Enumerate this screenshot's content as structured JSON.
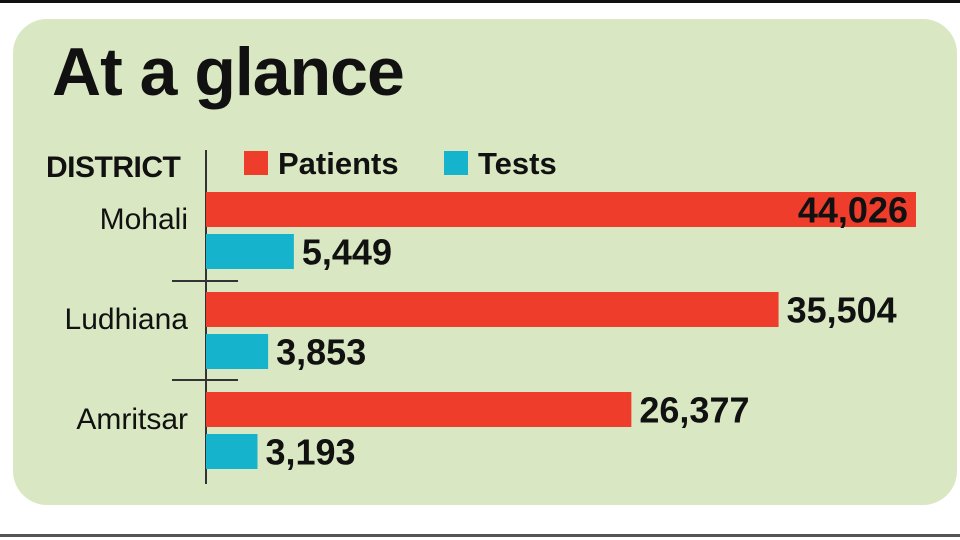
{
  "colors": {
    "background_panel": "#d9e8c2",
    "patients": "#ef3d2c",
    "tests": "#16b3cc",
    "text": "#111111",
    "inside_label": "#ffffff"
  },
  "chart_data": {
    "type": "bar",
    "orientation": "horizontal",
    "title": "At a glance",
    "category_header": "DISTRICT",
    "categories": [
      "Mohali",
      "Ludhiana",
      "Amritsar"
    ],
    "series": [
      {
        "name": "Patients",
        "values": [
          44026,
          35504,
          26377
        ],
        "value_labels": [
          "44,026",
          "35,504",
          "26,377"
        ]
      },
      {
        "name": "Tests",
        "values": [
          5449,
          3853,
          3193
        ],
        "value_labels": [
          "5,449",
          "3,853",
          "3,193"
        ]
      }
    ],
    "legend_position": "top",
    "grid": false
  }
}
